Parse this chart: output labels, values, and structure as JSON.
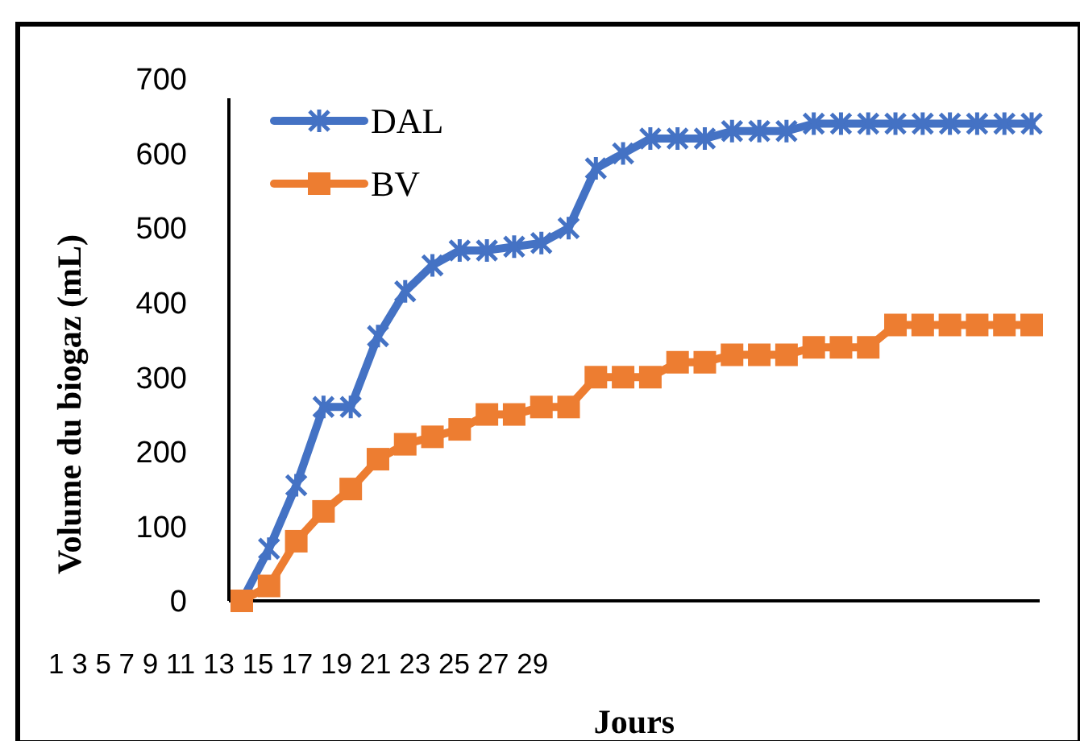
{
  "chart_data": {
    "type": "line",
    "xlabel": "Jours",
    "ylabel": "Volume du biogaz (mL)",
    "categories": [
      null,
      null,
      null,
      null,
      null,
      null,
      null,
      null,
      null,
      null,
      null,
      null,
      null,
      null,
      null,
      null,
      null,
      null,
      null,
      null,
      null,
      null,
      null,
      null,
      null,
      null,
      null,
      null,
      null,
      null
    ],
    "series": [
      {
        "name": "DAL",
        "color": "#4472c4",
        "marker": "cross",
        "values": [
          0,
          70,
          155,
          260,
          260,
          355,
          415,
          450,
          470,
          470,
          475,
          480,
          500,
          580,
          600,
          620,
          620,
          620,
          630,
          630,
          630,
          640,
          640,
          640,
          640,
          640,
          640,
          640,
          640,
          640
        ]
      },
      {
        "name": "BV",
        "color": "#ed7d31",
        "marker": "square",
        "values": [
          0,
          20,
          80,
          120,
          150,
          190,
          210,
          220,
          230,
          250,
          250,
          260,
          260,
          300,
          300,
          300,
          320,
          320,
          330,
          330,
          330,
          340,
          340,
          340,
          370,
          370,
          370,
          370,
          370,
          370
        ]
      }
    ],
    "ylim": [
      0,
      700
    ],
    "yticks": [
      0,
      100,
      200,
      300,
      400,
      500,
      600,
      700
    ],
    "grid": false,
    "legend": "top left",
    "annotations": [
      "1 3 5 7 9 11 13 15 17 19 21 23 25 27 29"
    ]
  }
}
